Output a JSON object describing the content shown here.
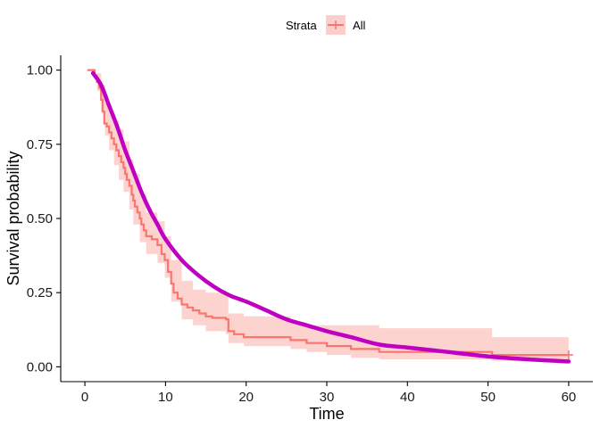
{
  "chart_data": {
    "type": "line",
    "title": "",
    "xlabel": "Time",
    "ylabel": "Survival probability",
    "xlim": [
      -3,
      63
    ],
    "ylim": [
      -0.05,
      1.05
    ],
    "xticks": [
      0,
      10,
      20,
      30,
      40,
      50,
      60
    ],
    "yticks": [
      0.0,
      0.25,
      0.5,
      0.75,
      1.0
    ],
    "ytick_labels": [
      "0.00",
      "0.25",
      "0.50",
      "0.75",
      "1.00"
    ],
    "grid": false,
    "legend": {
      "position": "top",
      "title": "Strata",
      "entries": [
        "All"
      ]
    },
    "colors": {
      "km_line": "#F8766D",
      "km_ci": "#F8766D",
      "model_line": "#C000C0"
    },
    "series": [
      {
        "name": "All",
        "kind": "step",
        "points": [
          [
            0.3,
            1.0
          ],
          [
            1.0,
            1.0
          ],
          [
            1.2,
            0.98
          ],
          [
            1.5,
            0.96
          ],
          [
            1.8,
            0.94
          ],
          [
            2.0,
            0.9
          ],
          [
            2.2,
            0.86
          ],
          [
            2.4,
            0.82
          ],
          [
            2.7,
            0.81
          ],
          [
            3.0,
            0.79
          ],
          [
            3.3,
            0.77
          ],
          [
            3.6,
            0.75
          ],
          [
            3.9,
            0.73
          ],
          [
            4.2,
            0.71
          ],
          [
            4.5,
            0.69
          ],
          [
            4.8,
            0.67
          ],
          [
            5.0,
            0.65
          ],
          [
            5.2,
            0.63
          ],
          [
            5.5,
            0.61
          ],
          [
            5.8,
            0.58
          ],
          [
            6.0,
            0.56
          ],
          [
            6.2,
            0.54
          ],
          [
            6.5,
            0.52
          ],
          [
            6.8,
            0.5
          ],
          [
            7.0,
            0.48
          ],
          [
            7.3,
            0.46
          ],
          [
            7.6,
            0.44
          ],
          [
            8.3,
            0.43
          ],
          [
            9.0,
            0.41
          ],
          [
            9.5,
            0.38
          ],
          [
            9.9,
            0.36
          ],
          [
            10.3,
            0.32
          ],
          [
            10.7,
            0.28
          ],
          [
            11.0,
            0.25
          ],
          [
            11.5,
            0.23
          ],
          [
            12.0,
            0.21
          ],
          [
            12.7,
            0.2
          ],
          [
            13.4,
            0.19
          ],
          [
            14.2,
            0.18
          ],
          [
            15.0,
            0.17
          ],
          [
            15.8,
            0.165
          ],
          [
            17.5,
            0.16
          ],
          [
            17.8,
            0.12
          ],
          [
            18.5,
            0.11
          ],
          [
            19.7,
            0.1
          ],
          [
            25.0,
            0.1
          ],
          [
            25.5,
            0.09
          ],
          [
            27.5,
            0.08
          ],
          [
            30.0,
            0.07
          ],
          [
            33.0,
            0.06
          ],
          [
            36.5,
            0.05
          ],
          [
            50.0,
            0.05
          ],
          [
            50.5,
            0.04
          ],
          [
            60.0,
            0.04
          ]
        ],
        "censor_marks": [
          [
            60.0,
            0.04
          ]
        ],
        "ci_lower": [
          [
            0.3,
            1.0
          ],
          [
            1.0,
            1.0
          ],
          [
            1.5,
            0.93
          ],
          [
            2.0,
            0.86
          ],
          [
            2.5,
            0.78
          ],
          [
            3.0,
            0.73
          ],
          [
            3.6,
            0.68
          ],
          [
            4.2,
            0.63
          ],
          [
            4.8,
            0.59
          ],
          [
            5.5,
            0.53
          ],
          [
            6.0,
            0.48
          ],
          [
            6.8,
            0.42
          ],
          [
            7.6,
            0.38
          ],
          [
            9.0,
            0.35
          ],
          [
            9.9,
            0.3
          ],
          [
            10.7,
            0.22
          ],
          [
            12.0,
            0.16
          ],
          [
            13.4,
            0.14
          ],
          [
            15.0,
            0.12
          ],
          [
            17.5,
            0.11
          ],
          [
            17.8,
            0.08
          ],
          [
            19.7,
            0.07
          ],
          [
            25.5,
            0.06
          ],
          [
            27.5,
            0.05
          ],
          [
            30.0,
            0.04
          ],
          [
            33.0,
            0.03
          ],
          [
            36.5,
            0.025
          ],
          [
            50.5,
            0.02
          ],
          [
            60.0,
            0.02
          ]
        ],
        "ci_upper": [
          [
            0.3,
            1.0
          ],
          [
            1.0,
            1.0
          ],
          [
            1.5,
            0.99
          ],
          [
            2.0,
            0.95
          ],
          [
            2.5,
            0.89
          ],
          [
            3.0,
            0.86
          ],
          [
            3.6,
            0.83
          ],
          [
            4.2,
            0.8
          ],
          [
            4.8,
            0.76
          ],
          [
            5.5,
            0.7
          ],
          [
            6.0,
            0.65
          ],
          [
            6.8,
            0.58
          ],
          [
            7.6,
            0.52
          ],
          [
            9.0,
            0.49
          ],
          [
            9.9,
            0.44
          ],
          [
            10.7,
            0.36
          ],
          [
            12.0,
            0.29
          ],
          [
            13.4,
            0.26
          ],
          [
            15.0,
            0.25
          ],
          [
            17.5,
            0.24
          ],
          [
            17.8,
            0.18
          ],
          [
            19.7,
            0.17
          ],
          [
            25.5,
            0.15
          ],
          [
            27.5,
            0.14
          ],
          [
            30.0,
            0.14
          ],
          [
            33.0,
            0.14
          ],
          [
            36.5,
            0.13
          ],
          [
            50.5,
            0.1
          ],
          [
            60.0,
            0.1
          ]
        ]
      },
      {
        "kind": "smooth",
        "points": [
          [
            1.0,
            0.99
          ],
          [
            2.0,
            0.95
          ],
          [
            3.0,
            0.88
          ],
          [
            4.0,
            0.81
          ],
          [
            5.0,
            0.73
          ],
          [
            6.0,
            0.66
          ],
          [
            7.0,
            0.59
          ],
          [
            8.0,
            0.53
          ],
          [
            9.0,
            0.48
          ],
          [
            10.0,
            0.43
          ],
          [
            12.0,
            0.36
          ],
          [
            14.0,
            0.31
          ],
          [
            16.0,
            0.27
          ],
          [
            18.0,
            0.24
          ],
          [
            20.0,
            0.22
          ],
          [
            22.5,
            0.19
          ],
          [
            25.0,
            0.16
          ],
          [
            27.5,
            0.14
          ],
          [
            30.0,
            0.12
          ],
          [
            33.0,
            0.1
          ],
          [
            36.5,
            0.075
          ],
          [
            40.0,
            0.065
          ],
          [
            45.0,
            0.05
          ],
          [
            50.0,
            0.035
          ],
          [
            55.0,
            0.025
          ],
          [
            60.0,
            0.018
          ]
        ]
      }
    ]
  }
}
